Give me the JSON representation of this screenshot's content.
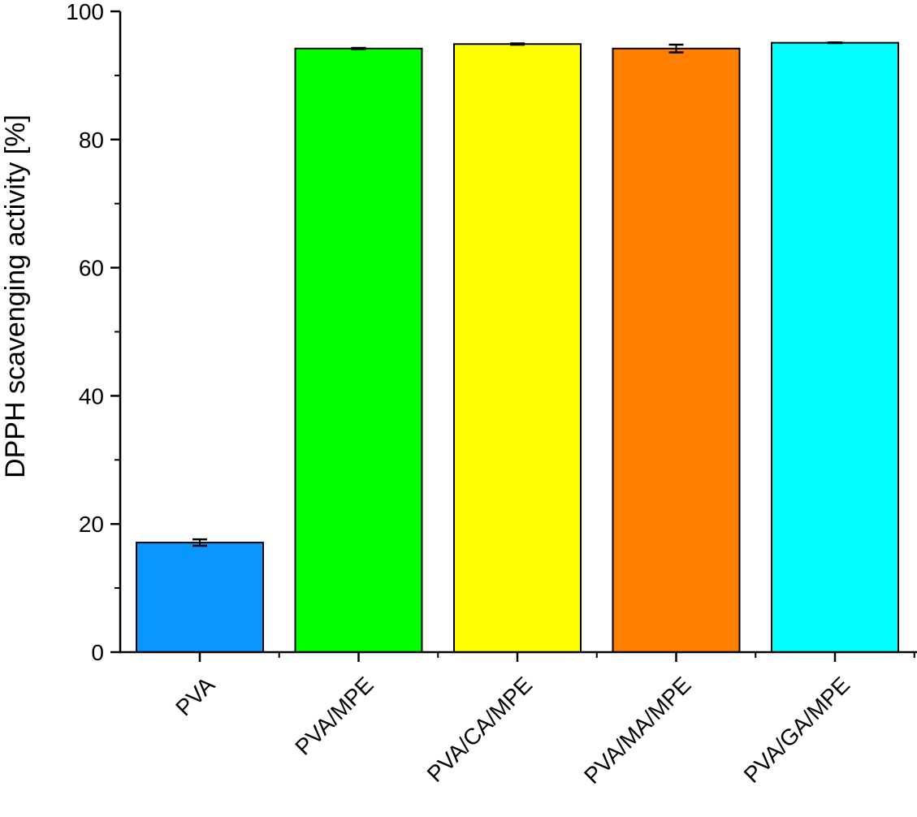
{
  "chart_data": {
    "type": "bar",
    "categories": [
      "PVA",
      "PVA/MPE",
      "PVA/CA/MPE",
      "PVA/MA/MPE",
      "PVA/GA/MPE"
    ],
    "values": [
      17.1,
      94.2,
      94.9,
      94.2,
      95.1
    ],
    "errors": [
      0.5,
      0.1,
      0.1,
      0.6,
      0.05
    ],
    "colors": [
      "#0a96ff",
      "#00ff00",
      "#ffff00",
      "#ff8000",
      "#00ffff"
    ],
    "title": "",
    "xlabel": "",
    "ylabel": "DPPH scavenging activity [%]",
    "ylim": [
      0,
      100
    ],
    "yticks": [
      "0",
      "20",
      "40",
      "60",
      "80",
      "100"
    ],
    "grid": false,
    "legend": "none"
  }
}
